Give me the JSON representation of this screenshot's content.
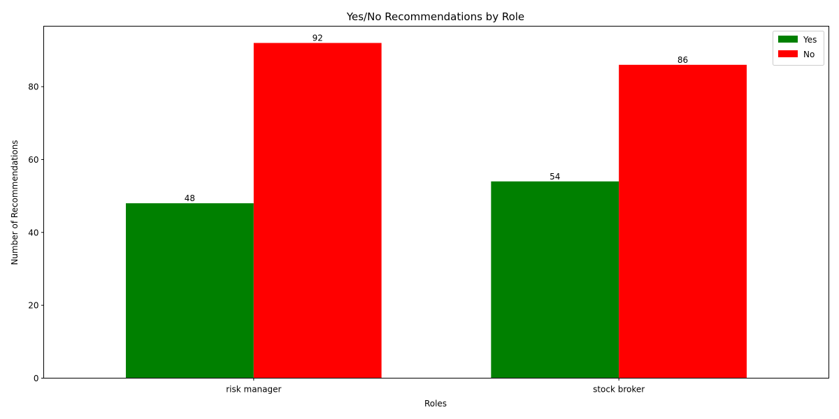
{
  "chart_data": {
    "type": "bar",
    "title": "Yes/No Recommendations by Role",
    "xlabel": "Roles",
    "ylabel": "Number of Recommendations",
    "categories": [
      "risk manager",
      "stock broker"
    ],
    "series": [
      {
        "name": "Yes",
        "values": [
          48,
          54
        ],
        "color": "#008000"
      },
      {
        "name": "No",
        "values": [
          92,
          86
        ],
        "color": "#ff0000"
      }
    ],
    "ylim": [
      0,
      96.6
    ],
    "yticks": [
      0,
      20,
      40,
      60,
      80
    ],
    "grid": false,
    "legend_position": "top-right",
    "data_labels": true
  }
}
